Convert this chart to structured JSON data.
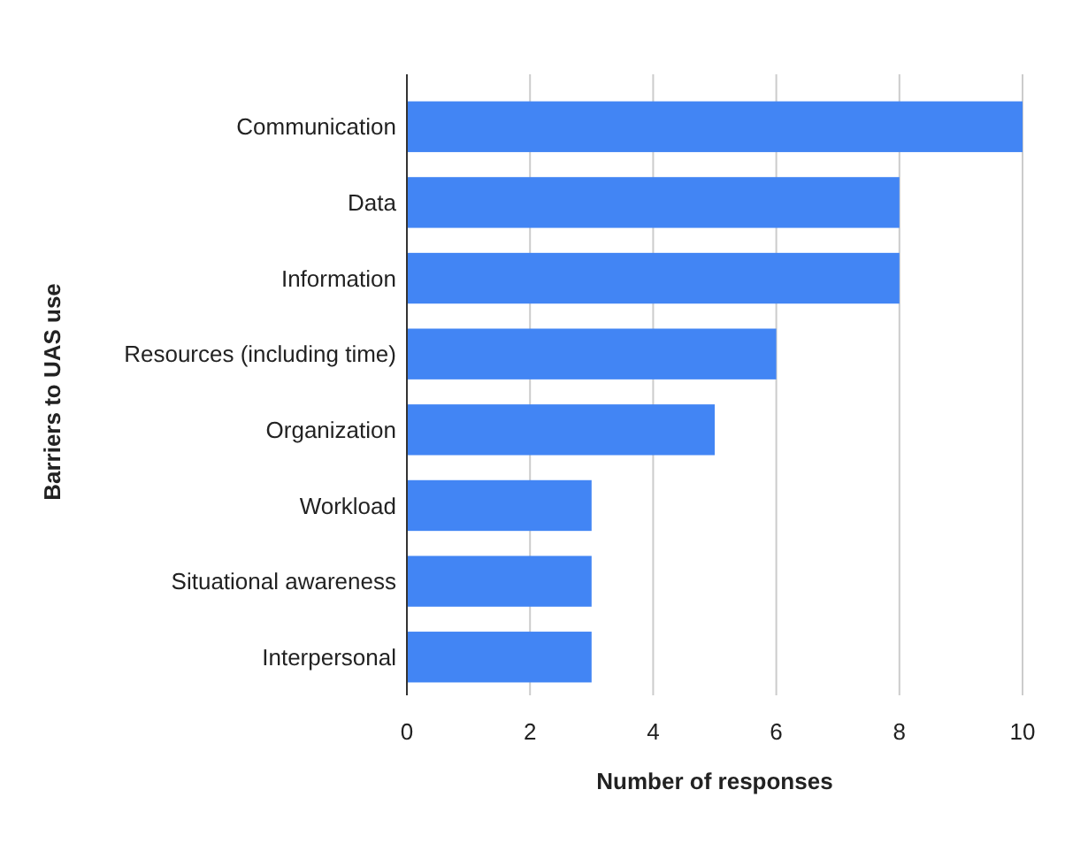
{
  "chart_data": {
    "type": "bar",
    "orientation": "horizontal",
    "xlabel": "Number of responses",
    "ylabel": "Barriers to UAS use",
    "categories": [
      "Communication",
      "Data",
      "Information",
      "Resources (including time)",
      "Organization",
      "Workload",
      "Situational awareness",
      "Interpersonal"
    ],
    "values": [
      10,
      8,
      8,
      6,
      5,
      3,
      3,
      3
    ],
    "color": "#4285f4",
    "xlim": [
      0,
      10
    ],
    "xticks": [
      0,
      2,
      4,
      6,
      8,
      10
    ],
    "grid": "x"
  }
}
